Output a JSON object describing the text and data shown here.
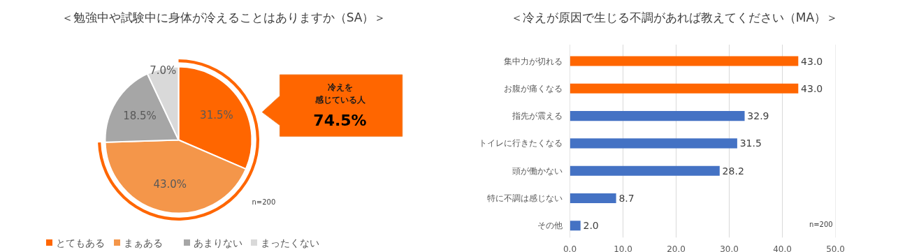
{
  "chart_data": [
    {
      "type": "pie",
      "title": "＜勉強中や試験中に身体が冷えることはありますか（SA）＞",
      "categories": [
        "とてもある",
        "まぁある",
        "あまりない",
        "まったくない"
      ],
      "values": [
        31.5,
        43.0,
        18.5,
        7.0
      ],
      "value_labels": [
        "31.5%",
        "43.0%",
        "18.5%",
        "7.0%"
      ],
      "colors": [
        "#ff6600",
        "#f4964a",
        "#a6a6a6",
        "#d9d9d9"
      ],
      "legend": "bottom",
      "annotations": [
        "冷えを",
        "感じている人",
        "74.5%",
        "n=200"
      ]
    },
    {
      "type": "bar",
      "orientation": "horizontal",
      "title": "＜冷えが原因で生じる不調があれば教えてください（MA）＞",
      "categories": [
        "集中力が切れる",
        "お腹が痛くなる",
        "指先が震える",
        "トイレに行きたくなる",
        "頭が働かない",
        "特に不調は感じない",
        "その他"
      ],
      "values": [
        43.0,
        43.0,
        32.9,
        31.5,
        28.2,
        8.7,
        2.0
      ],
      "value_labels": [
        "43.0",
        "43.0",
        "32.9",
        "31.5",
        "28.2",
        "8.7",
        "2.0"
      ],
      "colors": [
        "#ff6600",
        "#ff6600",
        "#4472c4",
        "#4472c4",
        "#4472c4",
        "#4472c4",
        "#4472c4"
      ],
      "xlim": [
        0,
        50
      ],
      "xticks": [
        {
          "value": 0,
          "label": "0.0"
        },
        {
          "value": 10,
          "label": "10.0"
        },
        {
          "value": 20,
          "label": "20.0"
        },
        {
          "value": 30,
          "label": "30.0"
        },
        {
          "value": 40,
          "label": "40.0"
        },
        {
          "value": 50,
          "label": "50.0"
        }
      ],
      "grid": "x",
      "annotations": [
        "n=200"
      ]
    }
  ]
}
